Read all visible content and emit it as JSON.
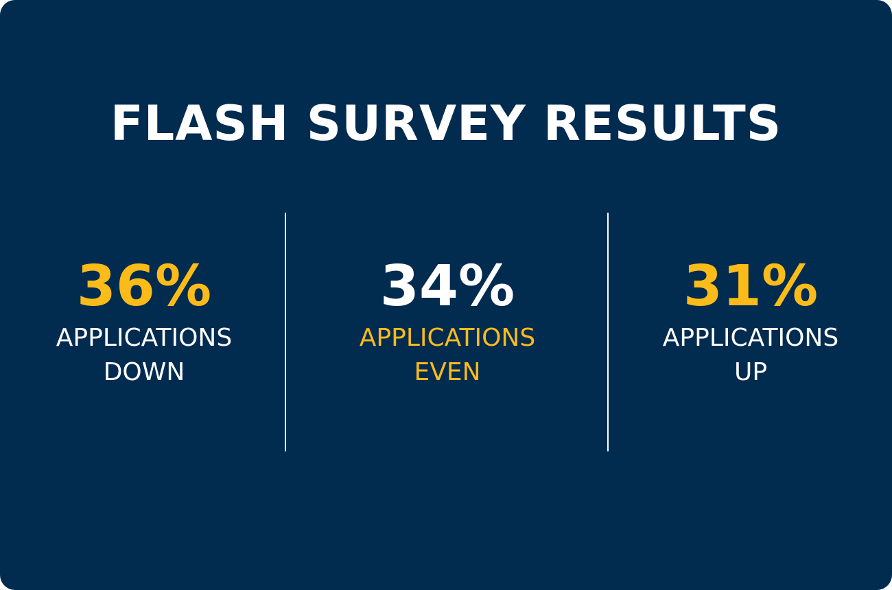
{
  "title": "FLASH SURVEY RESULTS",
  "stats": [
    {
      "value": "36%",
      "label_lines": [
        "APPLICATIONS",
        "DOWN"
      ]
    },
    {
      "value": "34%",
      "label_lines": [
        "APPLICATIONS",
        "EVEN"
      ]
    },
    {
      "value": "31%",
      "label_lines": [
        "APPLICATIONS",
        "UP"
      ]
    }
  ]
}
